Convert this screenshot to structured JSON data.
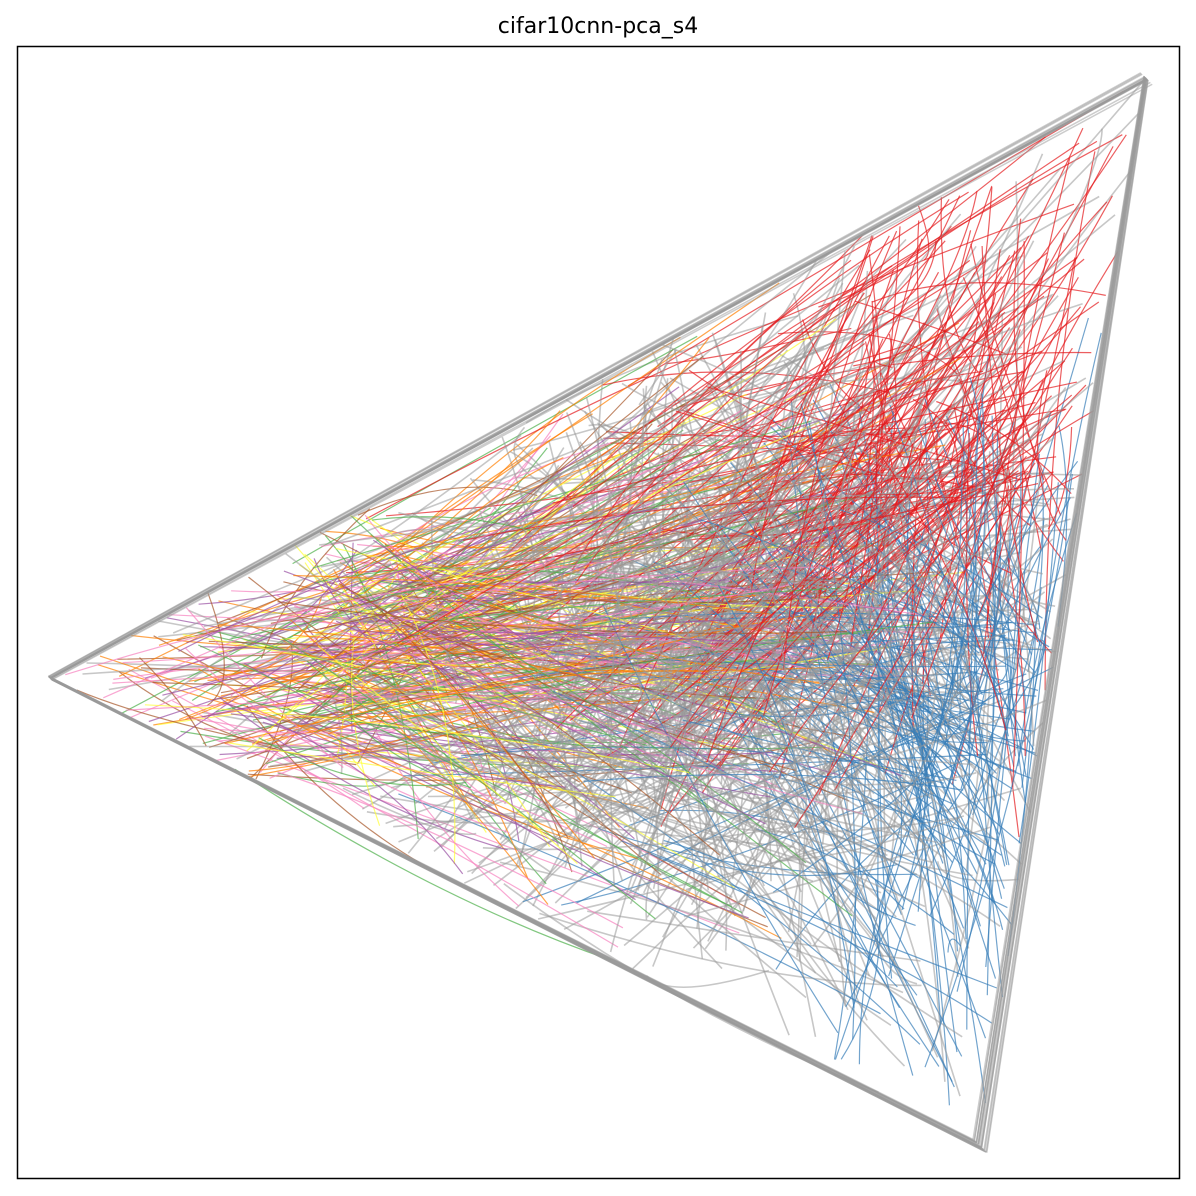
{
  "chart_data": {
    "type": "line",
    "title": "cifar10cnn-pca_s4",
    "xlabel": "",
    "ylabel": "",
    "x_ticks": [],
    "y_ticks": [],
    "grid": false,
    "legend": "none",
    "description_free_vertices": {
      "left": [
        0.0,
        0.0
      ],
      "top_right": [
        1.0,
        1.0
      ],
      "bottom_right": [
        0.85,
        -0.8
      ]
    },
    "series": [
      {
        "color": "#e41a1c"
      },
      {
        "color": "#377eb8"
      },
      {
        "color": "#4daf4a"
      },
      {
        "color": "#984ea3"
      },
      {
        "color": "#ff7f00"
      },
      {
        "color": "#ffff33"
      },
      {
        "color": "#a65628"
      },
      {
        "color": "#f781bf"
      },
      {
        "color": "#999999"
      }
    ]
  }
}
